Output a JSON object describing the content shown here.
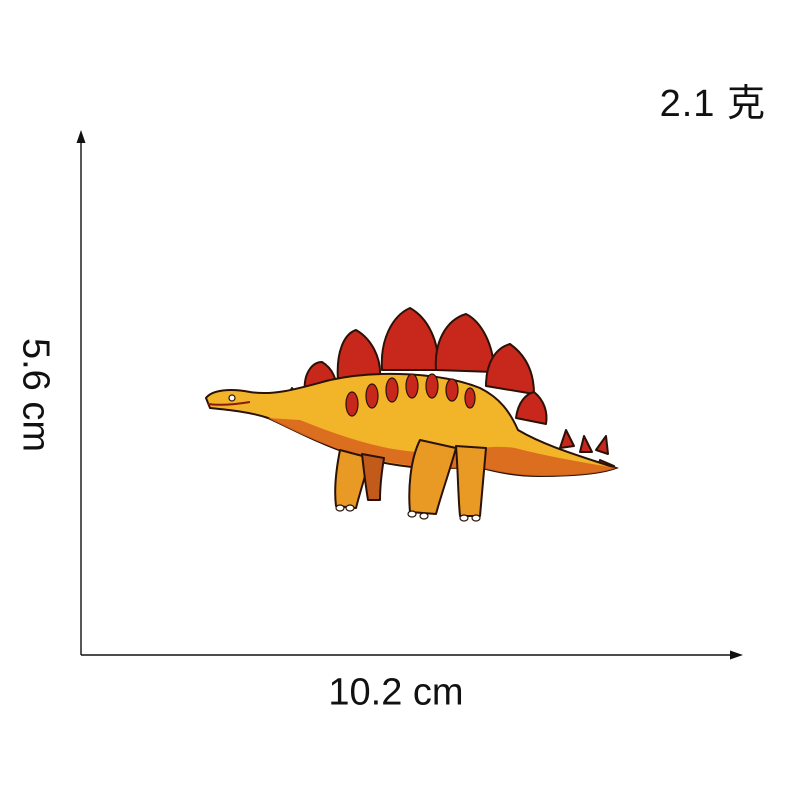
{
  "weight_label": "2.1 克",
  "height_label": "5.6 cm",
  "width_label": "10.2 cm",
  "colors": {
    "axis": "#111111",
    "plate_red": "#c8281c",
    "body_yellow": "#f2b52a",
    "belly_orange": "#d9661e",
    "outline": "#2b1208"
  },
  "image": {
    "subject": "stegosaurus embroidered patch"
  }
}
